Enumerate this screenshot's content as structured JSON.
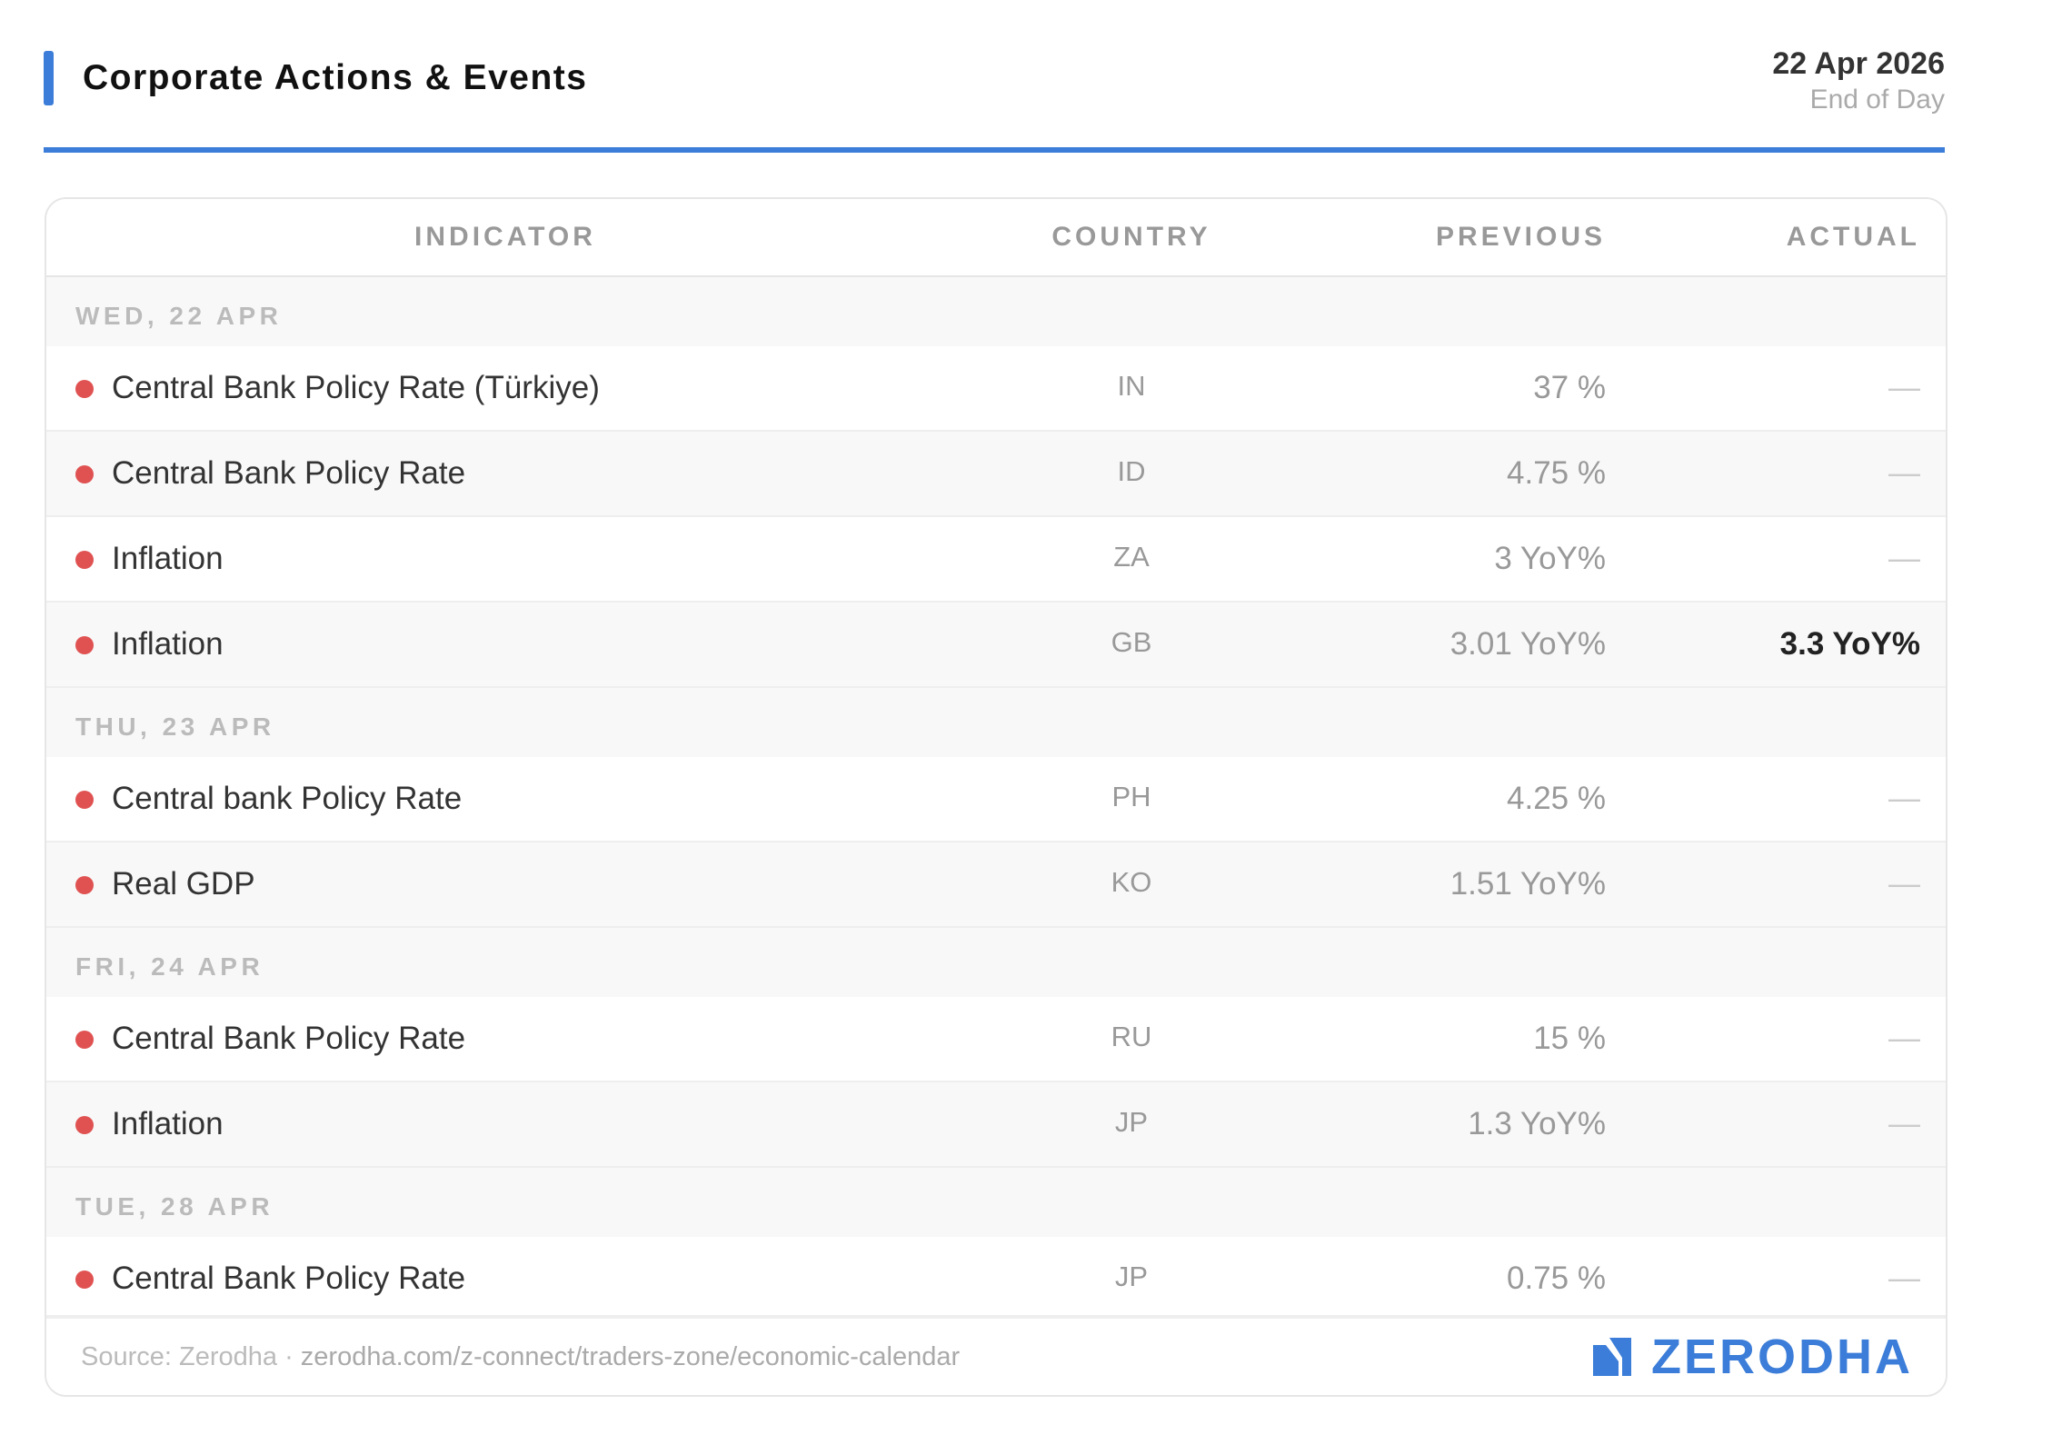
{
  "header": {
    "title": "Corporate Actions & Events",
    "date": "22 Apr 2026",
    "subtitle": "End of Day",
    "accent_color": "#3b7dd8"
  },
  "table": {
    "columns": {
      "indicator": "INDICATOR",
      "country": "COUNTRY",
      "previous": "PREVIOUS",
      "actual": "ACTUAL"
    },
    "empty_value": "—",
    "groups": [
      {
        "label": "WED, 22 APR",
        "rows": [
          {
            "indicator": "Central Bank Policy Rate (Türkiye)",
            "country": "IN",
            "previous": "37 %",
            "actual": ""
          },
          {
            "indicator": "Central Bank Policy Rate",
            "country": "ID",
            "previous": "4.75 %",
            "actual": ""
          },
          {
            "indicator": "Inflation",
            "country": "ZA",
            "previous": "3 YoY%",
            "actual": ""
          },
          {
            "indicator": "Inflation",
            "country": "GB",
            "previous": "3.01 YoY%",
            "actual": "3.3 YoY%"
          }
        ]
      },
      {
        "label": "THU, 23 APR",
        "rows": [
          {
            "indicator": "Central bank Policy Rate",
            "country": "PH",
            "previous": "4.25 %",
            "actual": ""
          },
          {
            "indicator": "Real GDP",
            "country": "KO",
            "previous": "1.51 YoY%",
            "actual": ""
          }
        ]
      },
      {
        "label": "FRI, 24 APR",
        "rows": [
          {
            "indicator": "Central Bank Policy Rate",
            "country": "RU",
            "previous": "15 %",
            "actual": ""
          },
          {
            "indicator": "Inflation",
            "country": "JP",
            "previous": "1.3 YoY%",
            "actual": ""
          }
        ]
      },
      {
        "label": "TUE, 28 APR",
        "rows": [
          {
            "indicator": "Central Bank Policy Rate",
            "country": "JP",
            "previous": "0.75 %",
            "actual": ""
          }
        ]
      }
    ],
    "importance_dot_color": "#e05252"
  },
  "footer": {
    "source_label": "Source: Zerodha",
    "separator": " · ",
    "source_url": "zerodha.com/z-connect/traders-zone/economic-calendar",
    "brand_name": "ZERODHA",
    "brand_icon": "zerodha-logo-icon",
    "brand_color": "#3b7dd8"
  }
}
